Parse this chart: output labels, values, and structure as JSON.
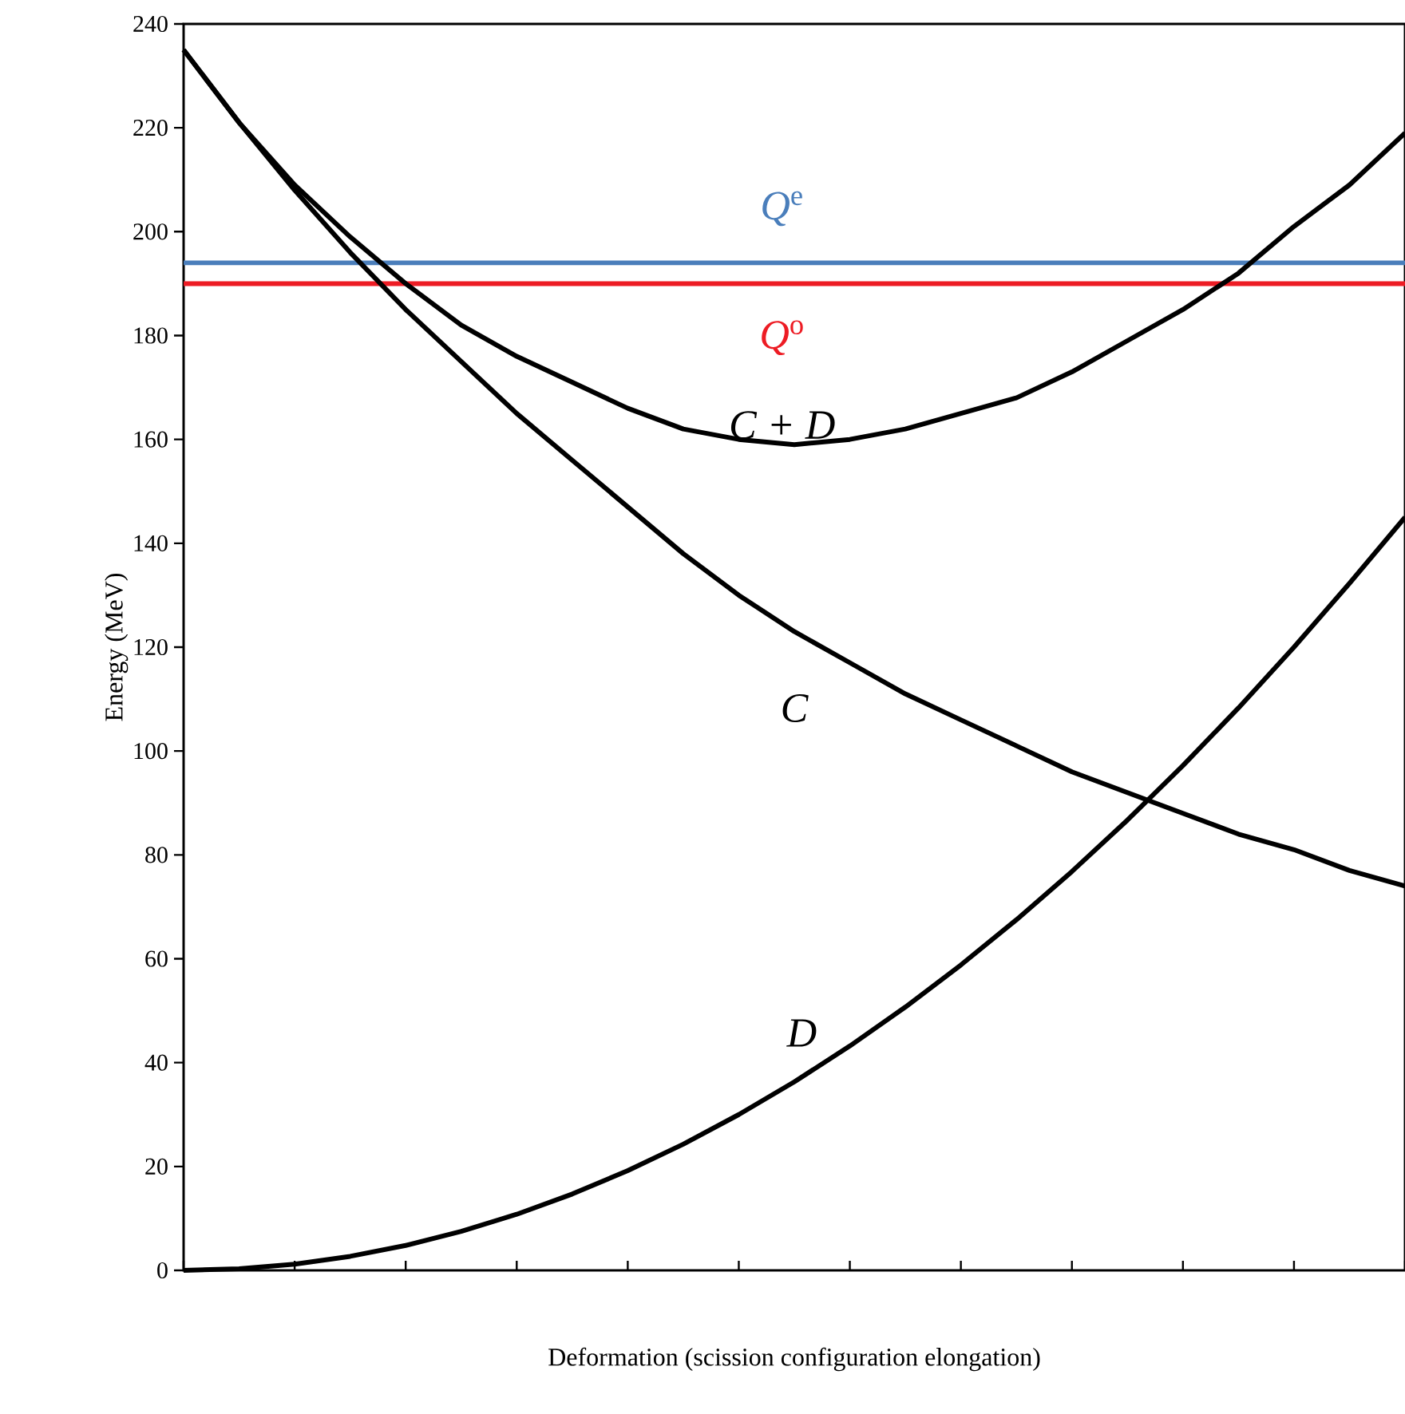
{
  "chart_data": {
    "type": "line",
    "xlabel": "Deformation (scission configuration elongation)",
    "ylabel": "Energy (MeV)",
    "categories": [
      null,
      null,
      null,
      null,
      null,
      null,
      null,
      null,
      null,
      null,
      null,
      null,
      null,
      null,
      null,
      null,
      null,
      null,
      null,
      null,
      null,
      null,
      null
    ],
    "series": [
      {
        "name": "C",
        "color": "#000000",
        "values": [
          235,
          221,
          208,
          196,
          185,
          175,
          165,
          156,
          147,
          138,
          130,
          123,
          117,
          111,
          106,
          101,
          96,
          92,
          88,
          84,
          81,
          77,
          74
        ]
      },
      {
        "name": "D",
        "color": "#000000",
        "values": [
          0,
          0.3,
          1.2,
          2.7,
          4.8,
          7.5,
          10.8,
          14.7,
          19.2,
          24.3,
          30,
          36.3,
          43.2,
          50.7,
          58.8,
          67.5,
          76.8,
          86.7,
          97.2,
          108.3,
          120,
          132.3,
          145
        ]
      },
      {
        "name": "C + D",
        "color": "#000000",
        "values": [
          235,
          221,
          209,
          199,
          190,
          182,
          176,
          171,
          166,
          162,
          160,
          159,
          160,
          162,
          165,
          168,
          173,
          179,
          185,
          192,
          201,
          209,
          219
        ]
      }
    ],
    "ylim": [
      0,
      240
    ],
    "yticks": [
      0,
      20,
      40,
      60,
      80,
      100,
      120,
      140,
      160,
      180,
      200,
      220,
      240
    ],
    "ref_lines": [
      {
        "axis": "y",
        "value": 194,
        "label": "*Q*$^{e}$",
        "color": "#4a7ebb"
      },
      {
        "axis": "y",
        "value": 190,
        "label": "*Q*$^{o}$",
        "color": "#ed1c24"
      }
    ],
    "tick_labels": "y",
    "grid": false,
    "marker": "none",
    "line_style": "solid"
  }
}
